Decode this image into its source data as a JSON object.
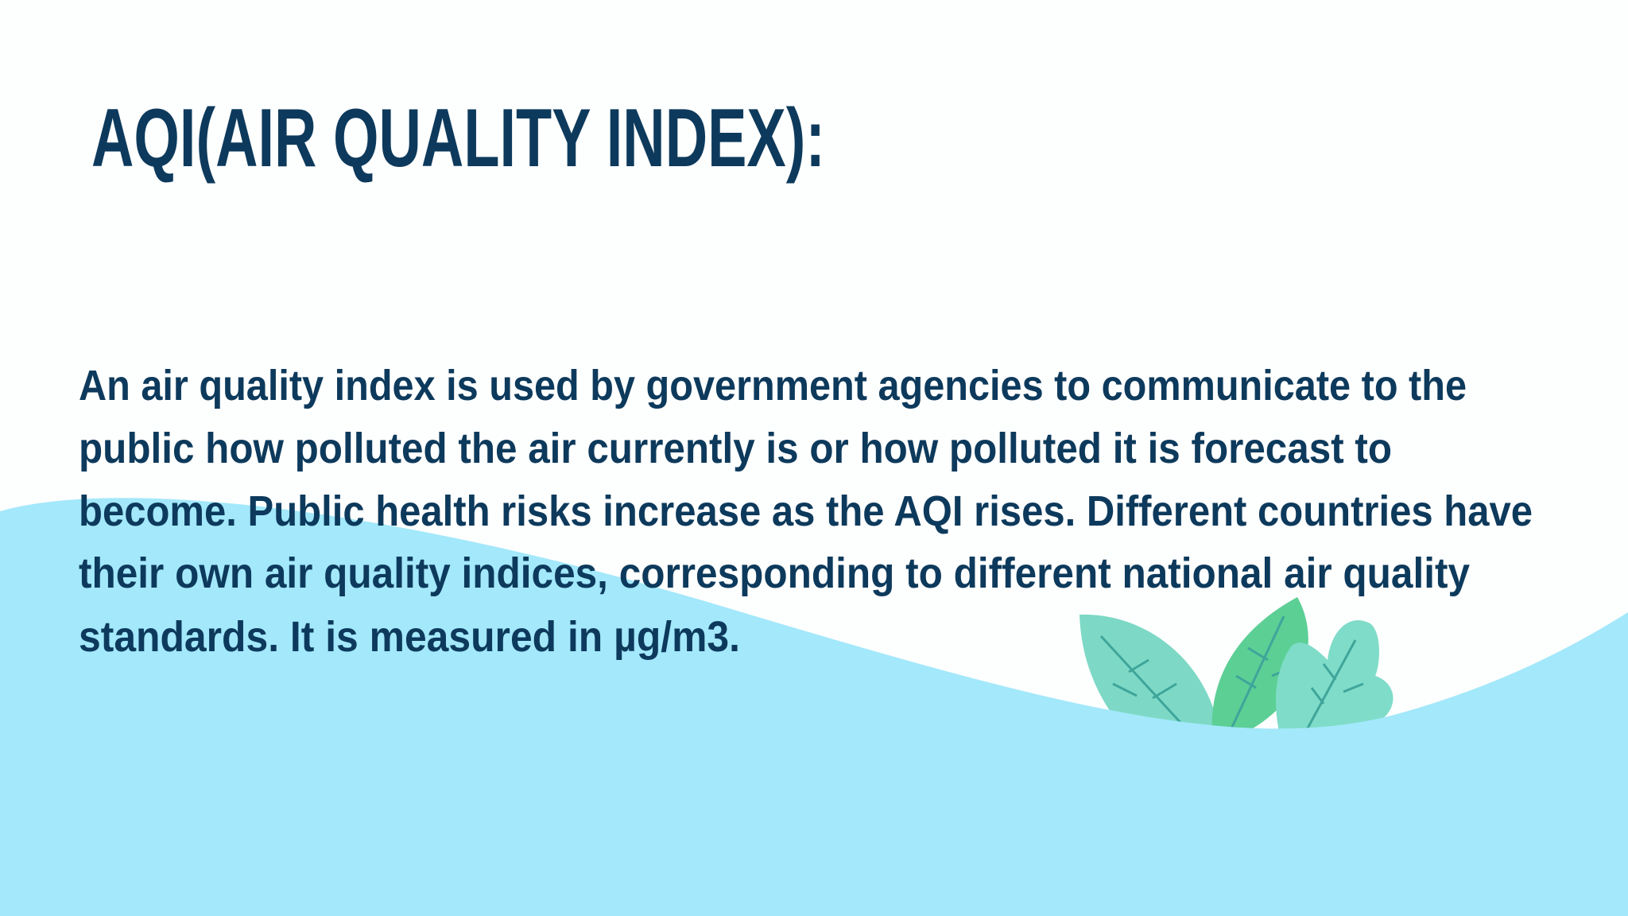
{
  "slide": {
    "title": "AQI(AIR QUALITY INDEX):",
    "body": {
      "lines": [
        "An air quality index is used by government agencies to communicate to the",
        "public how polluted the air currently is or how polluted it is forecast to",
        "become. Public health risks increase as the AQI rises. Different countries have",
        "their own air quality indices, corresponding to different national air quality",
        "standards. It is measured in µg/m3."
      ]
    }
  }
}
